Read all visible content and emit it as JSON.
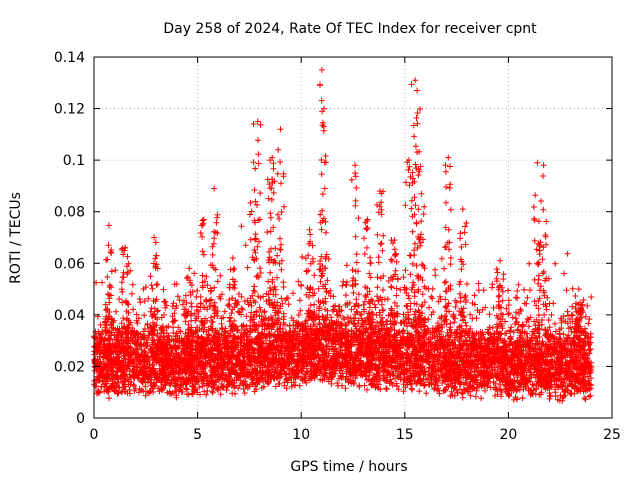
{
  "chart_data": {
    "type": "scatter",
    "title": "Day 258 of 2024, Rate Of TEC Index for receiver cpnt",
    "xlabel": "GPS time / hours",
    "ylabel": "ROTI / TECUs",
    "xlim": [
      0,
      25
    ],
    "ylim": [
      0,
      0.14
    ],
    "xticks": [
      "0",
      "5",
      "10",
      "15",
      "20",
      "25"
    ],
    "yticks": [
      "0",
      "0.02",
      "0.04",
      "0.06",
      "0.08",
      "0.1",
      "0.12",
      "0.14"
    ],
    "grid": true,
    "marker": "+",
    "color": "#ff0000",
    "series": [
      {
        "name": "ROTI",
        "baseline": {
          "x": [
            0,
            1,
            2,
            3,
            4,
            5,
            6,
            7,
            8,
            9,
            10,
            11,
            12,
            13,
            14,
            15,
            16,
            17,
            18,
            19,
            20,
            21,
            22,
            23,
            24
          ],
          "y": [
            0.02,
            0.021,
            0.022,
            0.022,
            0.021,
            0.021,
            0.022,
            0.022,
            0.023,
            0.024,
            0.025,
            0.026,
            0.025,
            0.024,
            0.024,
            0.024,
            0.023,
            0.022,
            0.021,
            0.021,
            0.02,
            0.021,
            0.02,
            0.02,
            0.02
          ]
        },
        "peaks": {
          "x": [
            0.7,
            1.5,
            2.9,
            4.6,
            5.3,
            5.8,
            6.7,
            7.7,
            7.9,
            8.5,
            8.6,
            9.0,
            10.4,
            11.0,
            11.1,
            12.6,
            13.2,
            13.8,
            14.5,
            15.2,
            15.5,
            15.6,
            15.8,
            17.1,
            17.8,
            19.6,
            21.4,
            21.7,
            23.4
          ],
          "y": [
            0.067,
            0.066,
            0.07,
            0.058,
            0.077,
            0.089,
            0.062,
            0.114,
            0.115,
            0.1,
            0.101,
            0.112,
            0.073,
            0.135,
            0.12,
            0.098,
            0.077,
            0.088,
            0.069,
            0.1,
            0.131,
            0.127,
            0.087,
            0.101,
            0.081,
            0.061,
            0.099,
            0.098,
            0.05
          ]
        }
      }
    ]
  }
}
